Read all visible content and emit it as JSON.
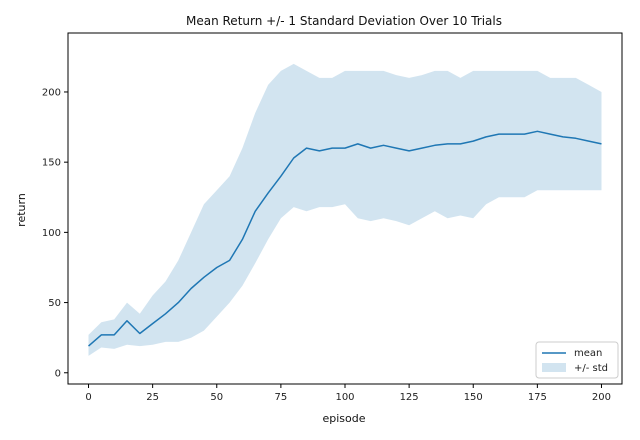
{
  "chart_data": {
    "type": "line",
    "title": "Mean Return +/- 1 Standard Deviation Over 10 Trials",
    "xlabel": "episode",
    "ylabel": "return",
    "xlim": [
      -8,
      208
    ],
    "ylim": [
      -8,
      242
    ],
    "xticks": [
      0,
      25,
      50,
      75,
      100,
      125,
      150,
      175,
      200
    ],
    "yticks": [
      0,
      50,
      100,
      150,
      200
    ],
    "grid": false,
    "legend": "bottom-right",
    "colors": {
      "mean": "#1f77b4",
      "band": "#1f77b4",
      "band_opacity": 0.2
    },
    "x": [
      0,
      5,
      10,
      15,
      20,
      25,
      30,
      35,
      40,
      45,
      50,
      55,
      60,
      65,
      70,
      75,
      80,
      85,
      90,
      95,
      100,
      105,
      110,
      115,
      120,
      125,
      130,
      135,
      140,
      145,
      150,
      155,
      160,
      165,
      170,
      175,
      180,
      185,
      190,
      195,
      200
    ],
    "series": [
      {
        "name": "mean",
        "values": [
          19,
          27,
          27,
          37,
          28,
          35,
          42,
          50,
          60,
          68,
          75,
          80,
          95,
          115,
          128,
          140,
          153,
          160,
          158,
          160,
          160,
          163,
          160,
          162,
          160,
          158,
          160,
          162,
          163,
          163,
          165,
          168,
          170,
          170,
          170,
          172,
          170,
          168,
          167,
          165,
          163
        ]
      },
      {
        "name": "+/- std",
        "lower": [
          12,
          18,
          17,
          20,
          19,
          20,
          22,
          22,
          25,
          30,
          40,
          50,
          62,
          78,
          95,
          110,
          118,
          115,
          118,
          118,
          120,
          110,
          108,
          110,
          108,
          105,
          110,
          115,
          110,
          112,
          110,
          120,
          125,
          125,
          125,
          130,
          130,
          130,
          130,
          130,
          130
        ],
        "upper": [
          27,
          36,
          38,
          50,
          42,
          55,
          65,
          80,
          100,
          120,
          130,
          140,
          160,
          185,
          205,
          215,
          220,
          215,
          210,
          210,
          215,
          215,
          215,
          215,
          212,
          210,
          212,
          215,
          215,
          210,
          215,
          215,
          215,
          215,
          215,
          215,
          210,
          210,
          210,
          205,
          200
        ]
      }
    ]
  }
}
